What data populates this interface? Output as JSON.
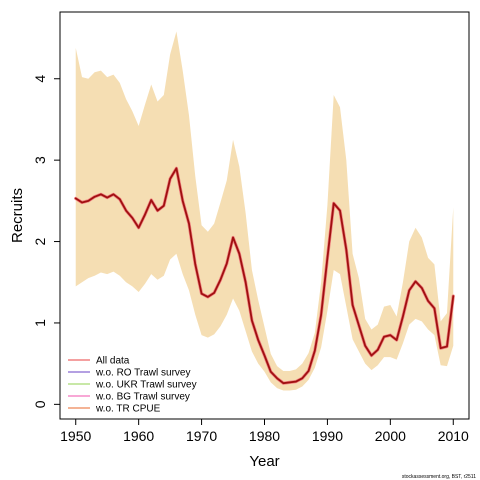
{
  "chart_data": {
    "type": "line",
    "title": "",
    "xlabel": "Year",
    "ylabel": "Recruits",
    "xlim": [
      1947.5,
      2012.5
    ],
    "ylim": [
      -0.18,
      4.82
    ],
    "xticks": [
      1950,
      1960,
      1970,
      1980,
      1990,
      2000,
      2010
    ],
    "yticks": [
      0,
      1,
      2,
      3,
      4
    ],
    "grid": false,
    "legend_position": "bottom-left",
    "credit": "stockassessment.org, BST, r2511",
    "x": [
      1950,
      1951,
      1952,
      1953,
      1954,
      1955,
      1956,
      1957,
      1958,
      1959,
      1960,
      1961,
      1962,
      1963,
      1964,
      1965,
      1966,
      1967,
      1968,
      1969,
      1970,
      1971,
      1972,
      1973,
      1974,
      1975,
      1976,
      1977,
      1978,
      1979,
      1980,
      1981,
      1982,
      1983,
      1984,
      1985,
      1986,
      1987,
      1988,
      1989,
      1990,
      1991,
      1992,
      1993,
      1994,
      1995,
      1996,
      1997,
      1998,
      1999,
      2000,
      2001,
      2002,
      2003,
      2004,
      2005,
      2006,
      2007,
      2008,
      2009,
      2010
    ],
    "band": {
      "color": "#f5deb3",
      "lower": [
        1.45,
        1.5,
        1.55,
        1.58,
        1.62,
        1.6,
        1.63,
        1.58,
        1.5,
        1.45,
        1.38,
        1.48,
        1.6,
        1.53,
        1.58,
        1.78,
        1.85,
        1.6,
        1.4,
        1.1,
        0.85,
        0.82,
        0.86,
        0.96,
        1.1,
        1.3,
        1.15,
        0.9,
        0.65,
        0.5,
        0.4,
        0.27,
        0.2,
        0.17,
        0.17,
        0.18,
        0.22,
        0.3,
        0.45,
        0.7,
        1.15,
        1.65,
        1.6,
        1.2,
        0.8,
        0.65,
        0.5,
        0.42,
        0.48,
        0.58,
        0.58,
        0.55,
        0.75,
        0.98,
        1.05,
        1.02,
        0.92,
        0.85,
        0.48,
        0.47,
        0.72
      ],
      "upper": [
        4.38,
        4.02,
        4.0,
        4.08,
        4.1,
        4.02,
        4.05,
        3.95,
        3.75,
        3.6,
        3.42,
        3.68,
        3.93,
        3.72,
        3.8,
        4.3,
        4.58,
        4.1,
        3.55,
        2.8,
        2.2,
        2.12,
        2.22,
        2.48,
        2.75,
        3.25,
        2.92,
        2.35,
        1.65,
        1.28,
        0.95,
        0.62,
        0.47,
        0.41,
        0.41,
        0.43,
        0.5,
        0.63,
        0.88,
        1.5,
        2.45,
        3.8,
        3.65,
        3.0,
        1.85,
        1.55,
        1.05,
        0.92,
        0.98,
        1.2,
        1.22,
        1.08,
        1.5,
        2.0,
        2.17,
        2.05,
        1.8,
        1.72,
        1.02,
        1.12,
        2.42
      ]
    },
    "series": [
      {
        "name": "All data",
        "color": "#f08080",
        "values": [
          2.53,
          2.48,
          2.5,
          2.55,
          2.58,
          2.54,
          2.58,
          2.52,
          2.38,
          2.29,
          2.17,
          2.33,
          2.51,
          2.38,
          2.44,
          2.77,
          2.9,
          2.5,
          2.22,
          1.72,
          1.36,
          1.32,
          1.37,
          1.53,
          1.73,
          2.05,
          1.85,
          1.5,
          1.03,
          0.79,
          0.6,
          0.4,
          0.32,
          0.26,
          0.27,
          0.28,
          0.32,
          0.41,
          0.66,
          1.1,
          1.8,
          2.47,
          2.38,
          1.9,
          1.22,
          0.97,
          0.72,
          0.6,
          0.67,
          0.83,
          0.85,
          0.79,
          1.08,
          1.4,
          1.51,
          1.43,
          1.27,
          1.18,
          0.69,
          0.71,
          1.33
        ]
      },
      {
        "name": "w.o. RO Trawl survey",
        "color": "#9b80d8"
      },
      {
        "name": "w.o. UKR Trawl survey",
        "color": "#b6e08a"
      },
      {
        "name": "w.o. BG Trawl survey",
        "color": "#f58cc8"
      },
      {
        "name": "w.o. TR CPUE",
        "color": "#f09a72"
      }
    ],
    "main_line_color": "#a01010"
  }
}
